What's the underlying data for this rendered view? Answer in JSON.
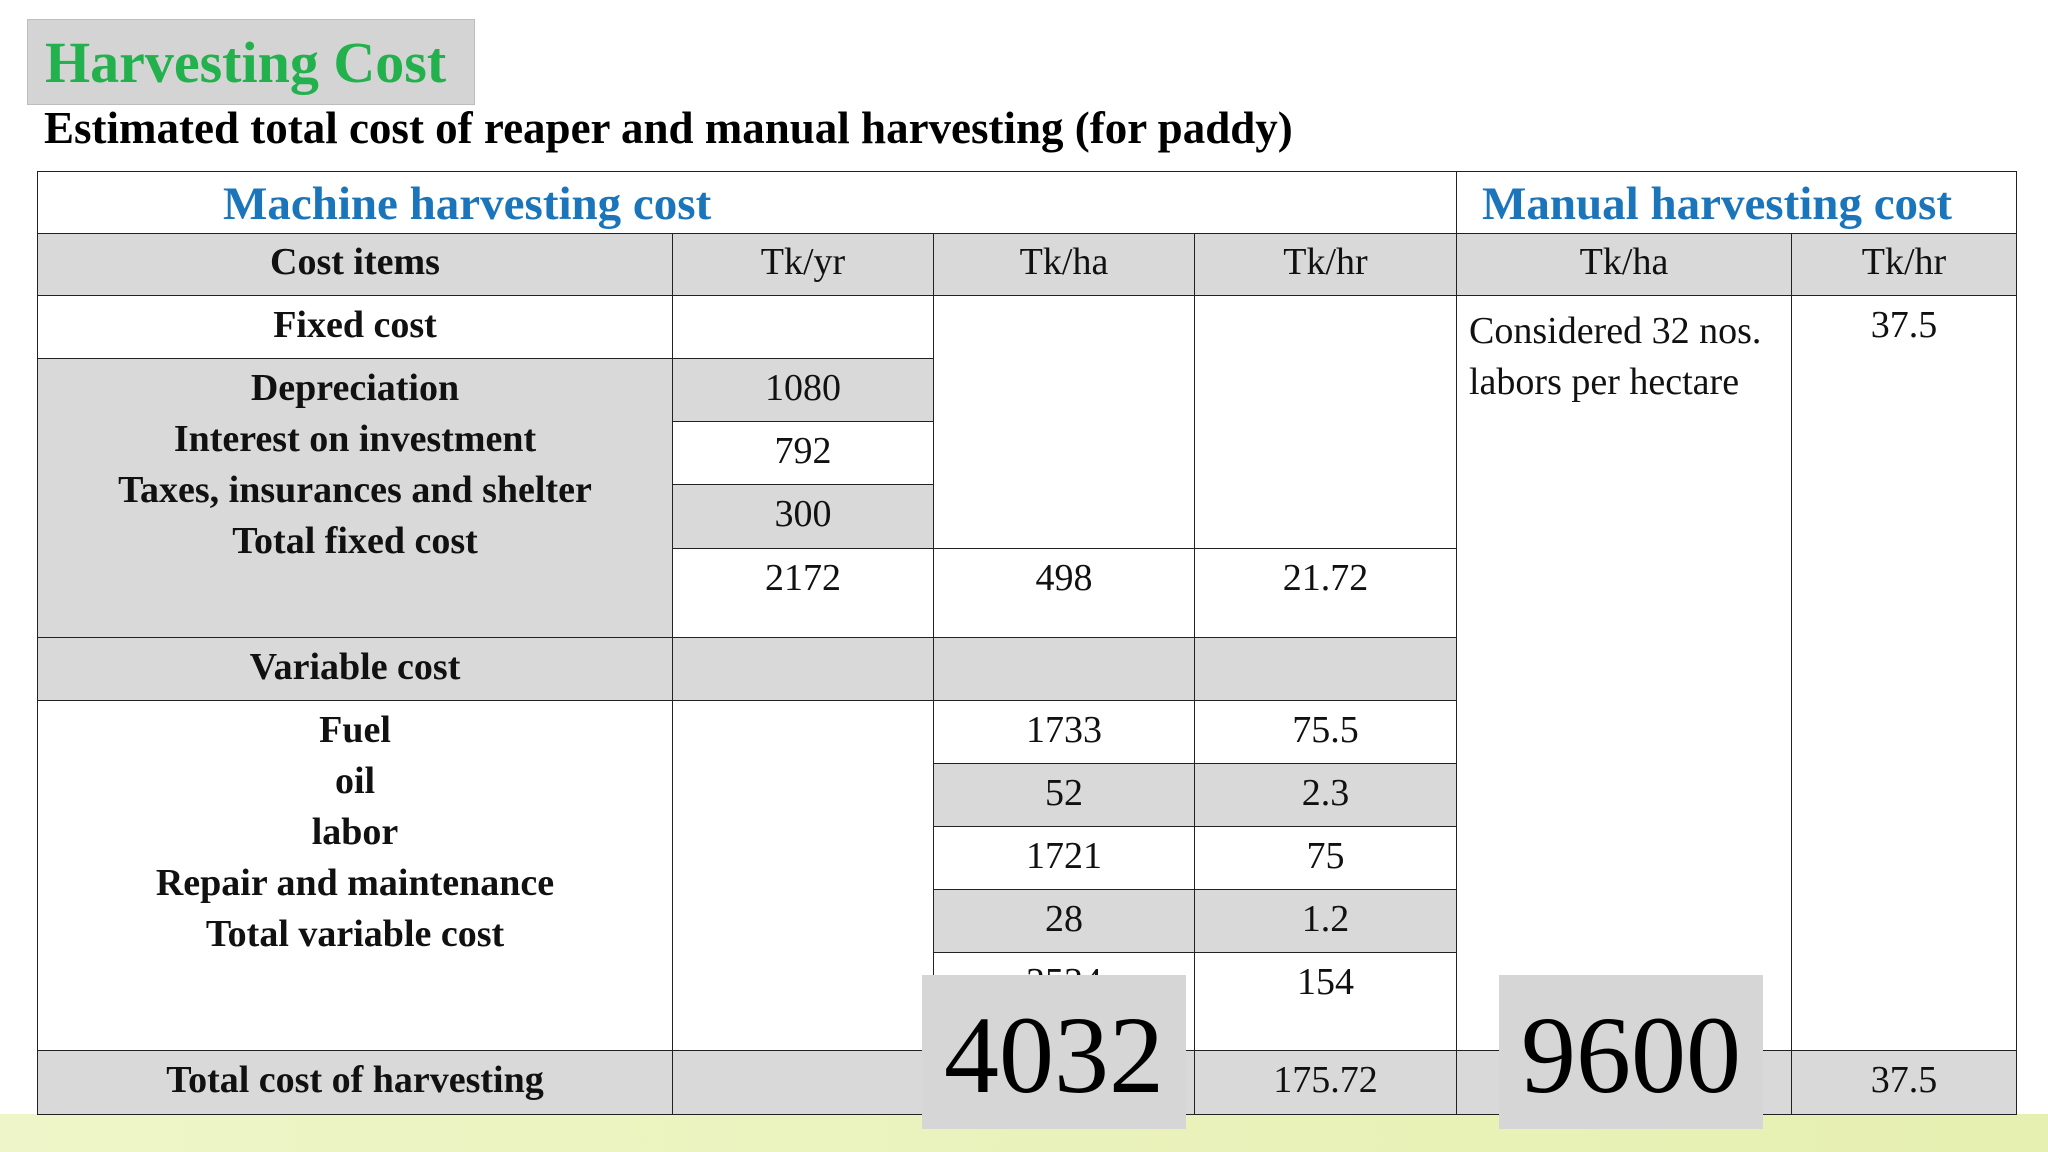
{
  "title": "Harvesting Cost",
  "subtitle": "Estimated total cost of reaper and manual harvesting (for paddy)",
  "table": {
    "machine_header": "Machine harvesting cost",
    "manual_header": "Manual harvesting cost",
    "columns": [
      "Cost items",
      "Tk/yr",
      "Tk/ha",
      "Tk/hr",
      "Tk/ha",
      "Tk/hr"
    ],
    "fixed_cost_label": "Fixed cost",
    "fixed_items": [
      "Depreciation",
      "Interest on investment",
      "Taxes, insurances and shelter",
      "Total fixed cost"
    ],
    "fixed_tk_yr": [
      "1080",
      "792",
      "300",
      "2172"
    ],
    "total_fixed_tk_ha": "498",
    "total_fixed_tk_hr": "21.72",
    "variable_cost_label": "Variable cost",
    "variable_items": [
      "Fuel",
      "oil",
      "labor",
      "Repair and maintenance",
      "Total variable cost"
    ],
    "variable_tk_ha": [
      "1733",
      "52",
      "1721",
      "28",
      "3534"
    ],
    "variable_tk_hr": [
      "75.5",
      "2.3",
      "75",
      "1.2",
      "154"
    ],
    "manual_note": "Considered 32 nos. labors per hectare",
    "manual_tk_hr": "37.5",
    "total_label": "Total cost of harvesting",
    "total_machine_tk_hr": "175.72",
    "total_manual_tk_hr": "37.5"
  },
  "overlays": {
    "machine_total_tk_ha": "4032",
    "manual_total_tk_ha": "9600"
  },
  "colors": {
    "title_green": "#22b14c",
    "header_blue": "#1b75bb",
    "cell_gray": "#d9d9d9"
  }
}
